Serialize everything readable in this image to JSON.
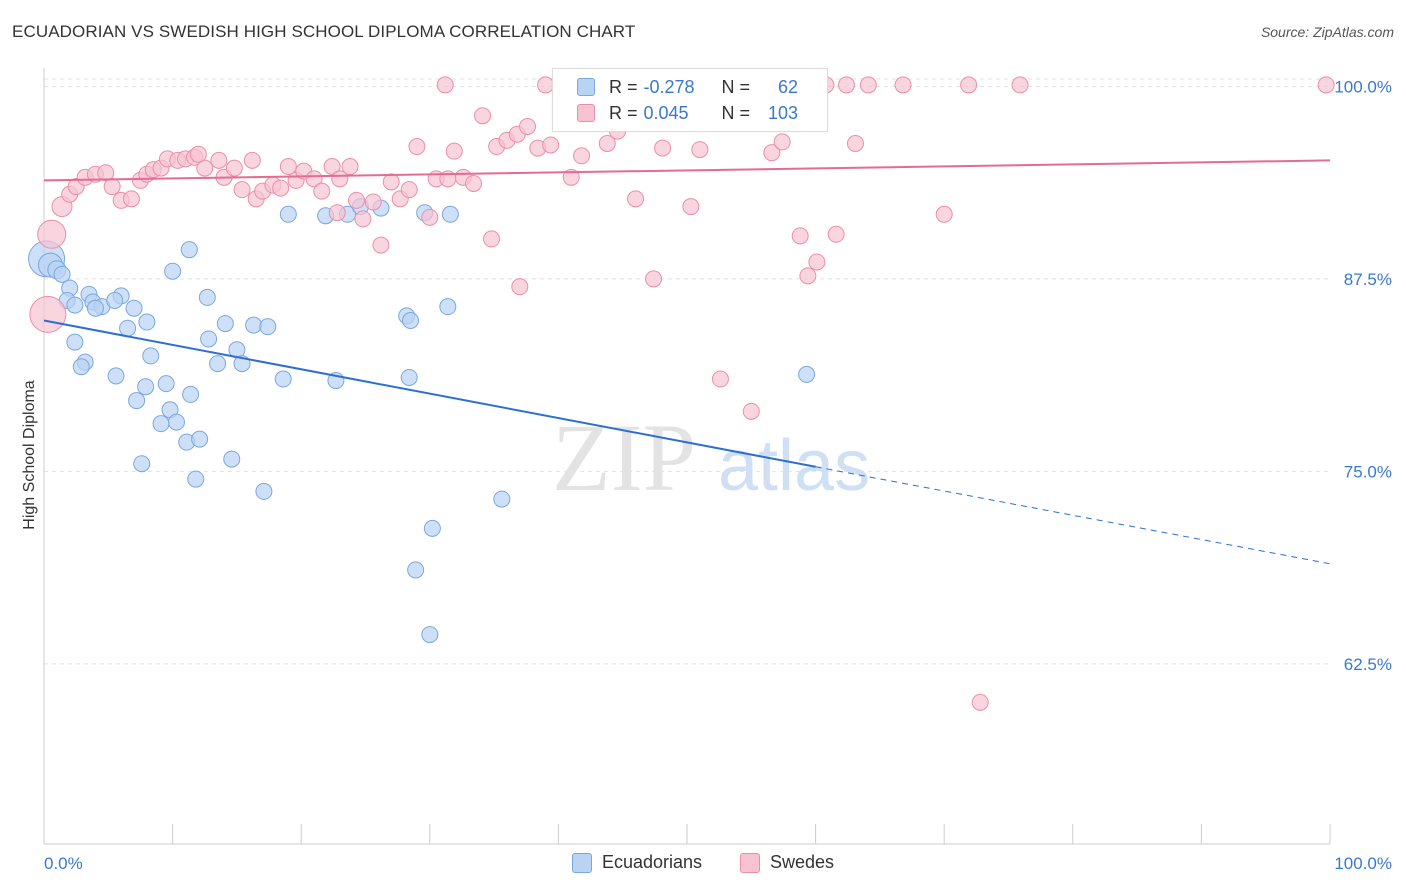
{
  "title": "ECUADORIAN VS SWEDISH HIGH SCHOOL DIPLOMA CORRELATION CHART",
  "source": "Source: ZipAtlas.com",
  "watermark": {
    "zip": "ZIP",
    "atlas": "atlas"
  },
  "legend": {
    "rows": [
      {
        "r_label": "R =",
        "r_value": "-0.278",
        "n_label": "N =",
        "n_value": "62",
        "fill": "#b9d3f3",
        "stroke": "#7aa7e0"
      },
      {
        "r_label": "R =",
        "r_value": "0.045",
        "n_label": "N =",
        "n_value": "103",
        "fill": "#f7c3d3",
        "stroke": "#eb8eab"
      }
    ]
  },
  "chart_data": {
    "type": "scatter",
    "title": "ECUADORIAN VS SWEDISH HIGH SCHOOL DIPLOMA CORRELATION CHART",
    "xlabel": "",
    "ylabel": "High School Diploma",
    "x_tick_labels": [
      "0.0%",
      "100.0%"
    ],
    "y_tick_labels": [
      "100.0%",
      "87.5%",
      "75.0%",
      "62.5%"
    ],
    "y_ticks": [
      100.0,
      87.5,
      75.0,
      62.5
    ],
    "xlim": [
      0,
      100
    ],
    "ylim": [
      50.8,
      101.2
    ],
    "grid": true,
    "legend_position": "top-center",
    "series": [
      {
        "name": "Ecuadorians",
        "color": "#7aa7e0",
        "fill": "#b9d3f3",
        "trend": {
          "x": [
            0,
            60
          ],
          "y": [
            84.8,
            75.3
          ],
          "dashed_to": [
            100,
            69.0
          ],
          "color": "#2b6fd1"
        },
        "points": [
          [
            0.2,
            88.8,
            18
          ],
          [
            0.5,
            88.4,
            12
          ],
          [
            1.0,
            88.1,
            9
          ],
          [
            1.4,
            87.8,
            8
          ],
          [
            2.0,
            86.9,
            8
          ],
          [
            1.8,
            86.1,
            8
          ],
          [
            2.4,
            85.8,
            8
          ],
          [
            3.5,
            86.5,
            8
          ],
          [
            3.8,
            86.0,
            8
          ],
          [
            4.5,
            85.7,
            8
          ],
          [
            4.0,
            85.6,
            8
          ],
          [
            6.0,
            86.4,
            8
          ],
          [
            5.5,
            86.1,
            8
          ],
          [
            7.0,
            85.6,
            8
          ],
          [
            8.0,
            84.7,
            8
          ],
          [
            6.5,
            84.3,
            8
          ],
          [
            2.4,
            83.4,
            8
          ],
          [
            3.2,
            82.1,
            8
          ],
          [
            2.9,
            81.8,
            8
          ],
          [
            5.6,
            81.2,
            8
          ],
          [
            7.9,
            80.5,
            8
          ],
          [
            8.3,
            82.5,
            8
          ],
          [
            9.5,
            80.7,
            8
          ],
          [
            11.4,
            80.0,
            8
          ],
          [
            7.2,
            79.6,
            8
          ],
          [
            9.8,
            79.0,
            8
          ],
          [
            10.3,
            78.2,
            8
          ],
          [
            9.1,
            78.1,
            8
          ],
          [
            11.1,
            76.9,
            8
          ],
          [
            12.1,
            77.1,
            8
          ],
          [
            7.6,
            75.5,
            8
          ],
          [
            14.6,
            75.8,
            8
          ],
          [
            11.8,
            74.5,
            8
          ],
          [
            17.1,
            73.7,
            8
          ],
          [
            10.0,
            88.0,
            8
          ],
          [
            11.3,
            89.4,
            8
          ],
          [
            12.7,
            86.3,
            8
          ],
          [
            12.8,
            83.6,
            8
          ],
          [
            14.1,
            84.6,
            8
          ],
          [
            15.0,
            82.9,
            8
          ],
          [
            16.3,
            84.5,
            8
          ],
          [
            17.4,
            84.4,
            8
          ],
          [
            13.5,
            82.0,
            8
          ],
          [
            15.4,
            82.0,
            8
          ],
          [
            18.6,
            81.0,
            8
          ],
          [
            19.0,
            91.7,
            8
          ],
          [
            21.9,
            91.6,
            8
          ],
          [
            23.6,
            91.7,
            8
          ],
          [
            26.2,
            92.1,
            8
          ],
          [
            29.6,
            91.8,
            8
          ],
          [
            22.7,
            80.9,
            8
          ],
          [
            28.2,
            85.1,
            8
          ],
          [
            28.5,
            84.8,
            8
          ],
          [
            28.4,
            81.1,
            8
          ],
          [
            31.4,
            85.7,
            8
          ],
          [
            28.9,
            68.6,
            8
          ],
          [
            30.2,
            71.3,
            8
          ],
          [
            30.0,
            64.4,
            8
          ],
          [
            35.6,
            73.2,
            8
          ],
          [
            59.3,
            81.3,
            8
          ],
          [
            31.6,
            91.7,
            8
          ],
          [
            24.6,
            92.2,
            8
          ]
        ]
      },
      {
        "name": "Swedes",
        "color": "#eb8eab",
        "fill": "#f7c3d3",
        "trend": {
          "x": [
            0,
            100
          ],
          "y": [
            93.9,
            95.2
          ],
          "color": "#e56b92"
        },
        "points": [
          [
            0.3,
            85.2,
            18
          ],
          [
            0.6,
            90.4,
            14
          ],
          [
            1.4,
            92.2,
            10
          ],
          [
            2.0,
            93.0,
            8
          ],
          [
            2.5,
            93.5,
            8
          ],
          [
            3.2,
            94.1,
            8
          ],
          [
            4.0,
            94.3,
            8
          ],
          [
            4.8,
            94.4,
            8
          ],
          [
            5.3,
            93.5,
            8
          ],
          [
            6.0,
            92.6,
            8
          ],
          [
            6.8,
            92.7,
            8
          ],
          [
            7.5,
            93.9,
            8
          ],
          [
            8.0,
            94.3,
            8
          ],
          [
            8.5,
            94.6,
            8
          ],
          [
            9.1,
            94.7,
            8
          ],
          [
            9.6,
            95.3,
            8
          ],
          [
            10.4,
            95.2,
            8
          ],
          [
            11.0,
            95.3,
            8
          ],
          [
            11.7,
            95.4,
            8
          ],
          [
            12.5,
            94.7,
            8
          ],
          [
            12.0,
            95.6,
            8
          ],
          [
            13.6,
            95.2,
            8
          ],
          [
            14.0,
            94.1,
            8
          ],
          [
            14.8,
            94.7,
            8
          ],
          [
            15.4,
            93.3,
            8
          ],
          [
            16.2,
            95.2,
            8
          ],
          [
            16.5,
            92.7,
            8
          ],
          [
            17.0,
            93.2,
            8
          ],
          [
            17.8,
            93.6,
            8
          ],
          [
            18.4,
            93.4,
            8
          ],
          [
            19.0,
            94.8,
            8
          ],
          [
            19.6,
            93.9,
            8
          ],
          [
            20.2,
            94.5,
            8
          ],
          [
            21.0,
            94.0,
            8
          ],
          [
            21.6,
            93.2,
            8
          ],
          [
            22.4,
            94.8,
            8
          ],
          [
            23.0,
            94.0,
            8
          ],
          [
            23.8,
            94.8,
            8
          ],
          [
            24.3,
            92.6,
            8
          ],
          [
            24.8,
            91.4,
            8
          ],
          [
            25.6,
            92.5,
            8
          ],
          [
            26.2,
            89.7,
            8
          ],
          [
            27.0,
            93.8,
            8
          ],
          [
            27.7,
            92.7,
            8
          ],
          [
            28.4,
            93.3,
            8
          ],
          [
            29.0,
            96.1,
            8
          ],
          [
            30.0,
            91.5,
            8
          ],
          [
            30.5,
            94.0,
            8
          ],
          [
            31.2,
            100.1,
            8
          ],
          [
            31.9,
            95.8,
            8
          ],
          [
            32.6,
            94.1,
            8
          ],
          [
            33.4,
            93.7,
            8
          ],
          [
            34.1,
            98.1,
            8
          ],
          [
            34.8,
            90.1,
            8
          ],
          [
            35.2,
            96.1,
            8
          ],
          [
            36.0,
            96.5,
            8
          ],
          [
            36.8,
            96.9,
            8
          ],
          [
            37.0,
            87.0,
            8
          ],
          [
            37.6,
            97.4,
            8
          ],
          [
            38.4,
            96.0,
            8
          ],
          [
            39.0,
            100.1,
            8
          ],
          [
            39.4,
            96.2,
            8
          ],
          [
            40.2,
            97.9,
            8
          ],
          [
            41.0,
            94.1,
            8
          ],
          [
            41.8,
            95.5,
            8
          ],
          [
            42.4,
            100.1,
            8
          ],
          [
            43.1,
            100.1,
            8
          ],
          [
            43.8,
            96.3,
            8
          ],
          [
            44.6,
            97.1,
            8
          ],
          [
            45.4,
            100.1,
            8
          ],
          [
            46.0,
            92.7,
            8
          ],
          [
            46.6,
            98.9,
            8
          ],
          [
            47.4,
            87.5,
            8
          ],
          [
            48.1,
            96.0,
            8
          ],
          [
            48.9,
            100.1,
            8
          ],
          [
            49.6,
            100.1,
            8
          ],
          [
            50.3,
            92.2,
            8
          ],
          [
            51.0,
            95.9,
            8
          ],
          [
            51.8,
            100.1,
            8
          ],
          [
            52.6,
            81.0,
            8
          ],
          [
            53.4,
            100.1,
            8
          ],
          [
            54.1,
            100.1,
            8
          ],
          [
            55.0,
            78.9,
            8
          ],
          [
            55.8,
            100.1,
            8
          ],
          [
            56.6,
            95.7,
            8
          ],
          [
            57.4,
            96.4,
            8
          ],
          [
            58.0,
            100.1,
            8
          ],
          [
            58.8,
            90.3,
            8
          ],
          [
            59.4,
            87.7,
            8
          ],
          [
            60.1,
            88.6,
            8
          ],
          [
            60.8,
            100.1,
            8
          ],
          [
            61.6,
            90.4,
            8
          ],
          [
            62.4,
            100.1,
            8
          ],
          [
            63.1,
            96.3,
            8
          ],
          [
            64.1,
            100.1,
            8
          ],
          [
            66.8,
            100.1,
            8
          ],
          [
            70.0,
            91.7,
            8
          ],
          [
            71.9,
            100.1,
            8
          ],
          [
            72.8,
            60.0,
            8
          ],
          [
            75.9,
            100.1,
            8
          ],
          [
            99.7,
            100.1,
            8
          ],
          [
            22.8,
            91.8,
            8
          ],
          [
            31.4,
            94.0,
            8
          ]
        ]
      }
    ]
  }
}
